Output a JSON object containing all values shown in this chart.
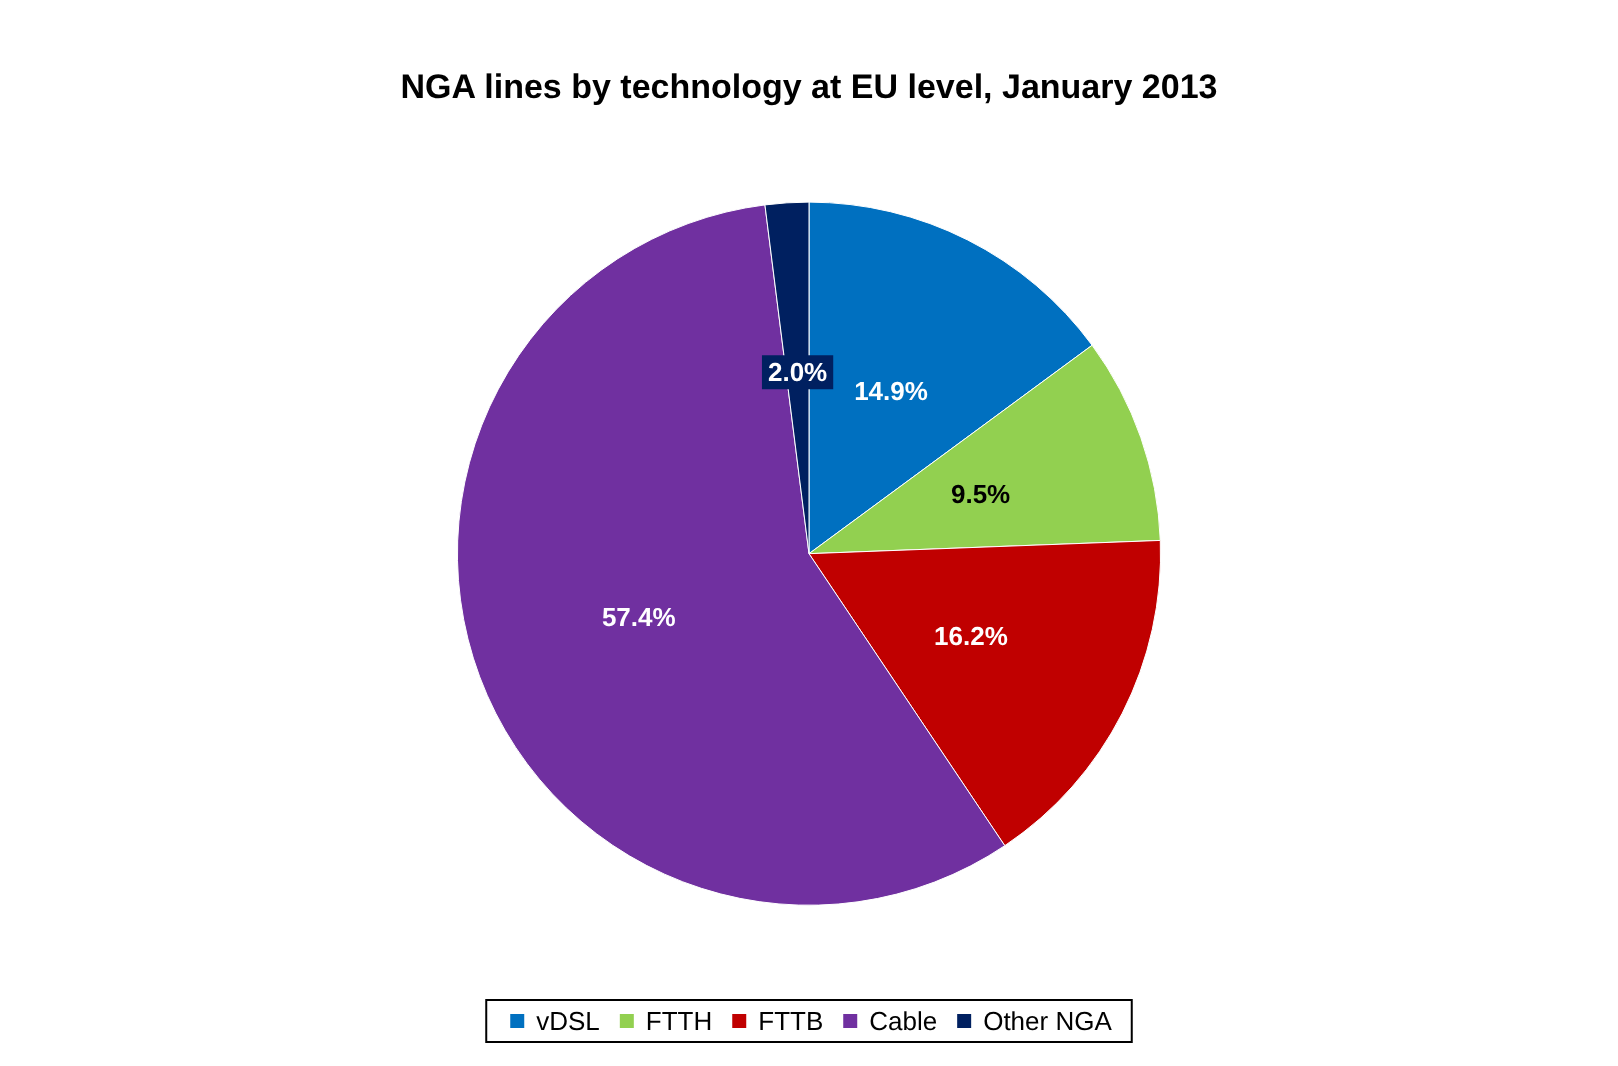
{
  "chart_data": {
    "type": "pie",
    "title": "NGA lines by technology at EU level, January 2013",
    "categories": [
      "vDSL",
      "FTTH",
      "FTTB",
      "Cable",
      "Other NGA"
    ],
    "values": [
      14.9,
      9.5,
      16.2,
      57.4,
      2.0
    ],
    "colors": [
      "#0070c0",
      "#92d050",
      "#c00000",
      "#7030a0",
      "#002060"
    ],
    "value_labels": [
      "14.9%",
      "9.5%",
      "16.2%",
      "57.4%",
      "2.0%"
    ],
    "legend": "bottom"
  }
}
